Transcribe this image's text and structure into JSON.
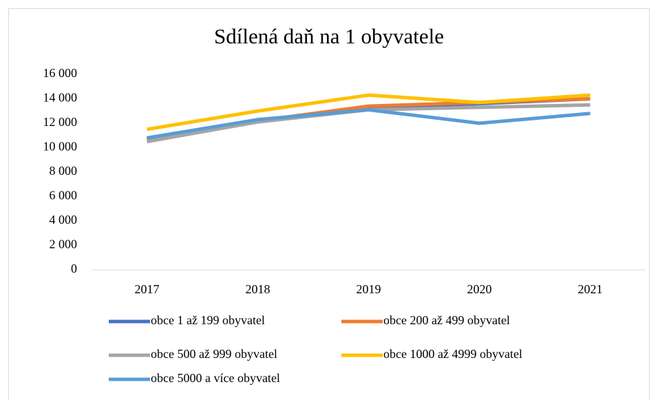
{
  "chart_data": {
    "type": "line",
    "title": "Sdílená daň na 1 obyvatele",
    "categories": [
      "2017",
      "2018",
      "2019",
      "2020",
      "2021"
    ],
    "series": [
      {
        "name": "obce 1 až 199 obyvatel",
        "color": "#4472c4",
        "values": [
          10700,
          12200,
          13300,
          13600,
          14000
        ]
      },
      {
        "name": "obce 200 až 499 obyvatel",
        "color": "#ed7d31",
        "values": [
          10600,
          12200,
          13400,
          13700,
          14000
        ]
      },
      {
        "name": "obce 500 až 999 obyvatel",
        "color": "#a5a5a5",
        "values": [
          10500,
          12100,
          13100,
          13300,
          13500
        ]
      },
      {
        "name": "obce 1000 až 4999 obyvatel",
        "color": "#ffc000",
        "values": [
          11500,
          13000,
          14300,
          13700,
          14300
        ]
      },
      {
        "name": "obce 5000 a více obyvatel",
        "color": "#5b9bd5",
        "values": [
          10800,
          12300,
          13100,
          12000,
          12800
        ]
      }
    ],
    "ylim": [
      0,
      16000
    ],
    "yticks": [
      0,
      {
        "value": 2000,
        "label": "2 000"
      },
      {
        "value": 4000,
        "label": "4 000"
      },
      {
        "value": 6000,
        "label": "6 000"
      },
      {
        "value": 8000,
        "label": "8 000"
      },
      {
        "value": 10000,
        "label": "10 000"
      },
      {
        "value": 12000,
        "label": "12 000"
      },
      {
        "value": 14000,
        "label": "14 000"
      },
      {
        "value": 16000,
        "label": "16 000"
      }
    ],
    "grid": false,
    "legend": "bottom"
  }
}
